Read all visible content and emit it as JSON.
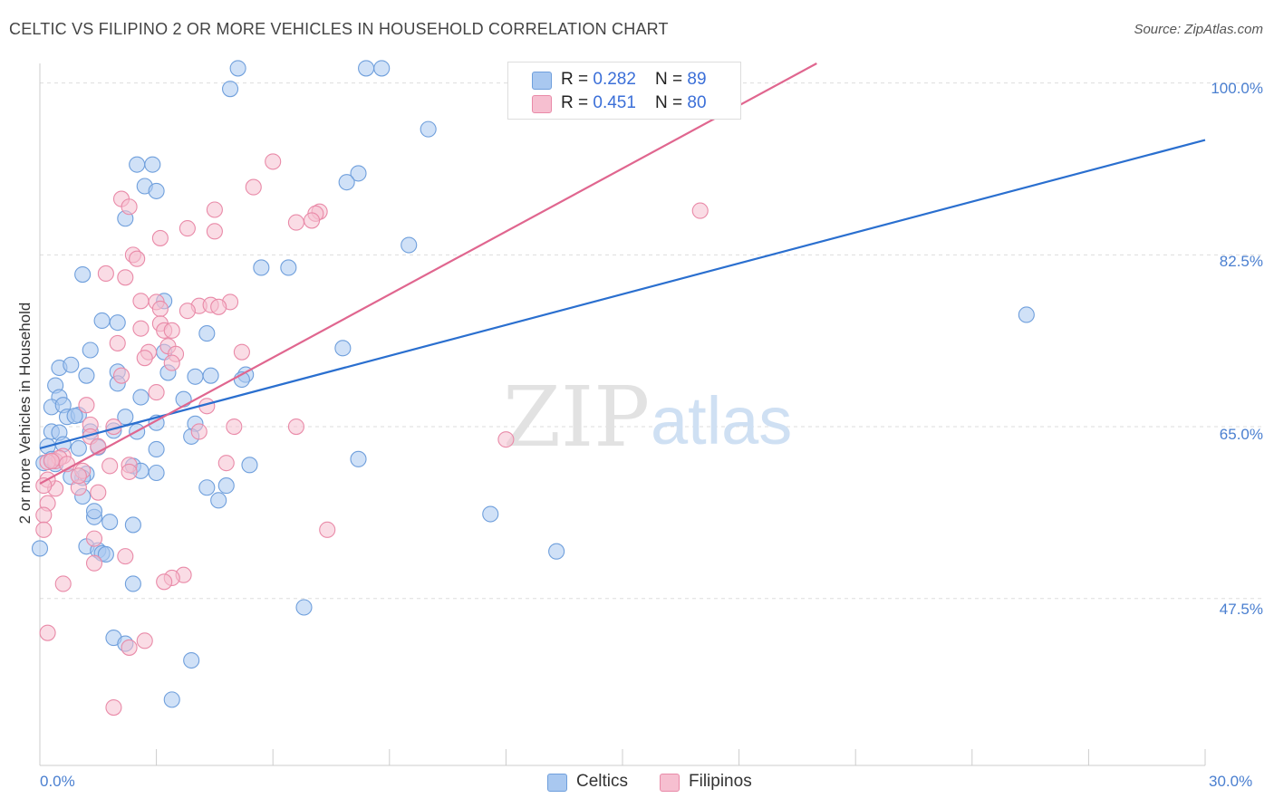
{
  "header": {
    "title": "CELTIC VS FILIPINO 2 OR MORE VEHICLES IN HOUSEHOLD CORRELATION CHART",
    "source": "Source: ZipAtlas.com"
  },
  "legend": {
    "rows": [
      {
        "r_label": "R = ",
        "r_value": "0.282",
        "n_label": "N = ",
        "n_value": "89"
      },
      {
        "r_label": "R = ",
        "r_value": "0.451",
        "n_label": "N = ",
        "n_value": "80"
      }
    ],
    "bottom": [
      "Celtics",
      "Filipinos"
    ]
  },
  "watermark": {
    "zip": "ZIP",
    "atlas": "atlas"
  },
  "colors": {
    "celtics_fill": "#a9c8f0",
    "celtics_stroke": "#6f9fdc",
    "celtics_line": "#2a6fcf",
    "filipinos_fill": "#f6bfd0",
    "filipinos_stroke": "#e98aa8",
    "filipinos_line": "#e0668f",
    "tick_text": "#4a7fd0",
    "grid": "#dddddd"
  },
  "chart_data": {
    "type": "scatter",
    "title": "CELTIC VS FILIPINO 2 OR MORE VEHICLES IN HOUSEHOLD CORRELATION CHART",
    "xlabel": "",
    "ylabel": "2 or more Vehicles in Household",
    "xlim": [
      0,
      30
    ],
    "ylim": [
      30.5,
      102
    ],
    "x_ticks": [
      "0.0%",
      "30.0%"
    ],
    "y_ticks": [
      {
        "value": 47.5,
        "label": "47.5%"
      },
      {
        "value": 65.0,
        "label": "65.0%"
      },
      {
        "value": 82.5,
        "label": "82.5%"
      },
      {
        "value": 100.0,
        "label": "100.0%"
      }
    ],
    "series": [
      {
        "name": "Celtics",
        "r": 0.282,
        "n": 89,
        "trend": {
          "x": [
            0,
            30
          ],
          "y": [
            62.8,
            94.2
          ]
        },
        "points": [
          [
            5.1,
            101.5
          ],
          [
            8.4,
            101.5
          ],
          [
            8.8,
            101.5
          ],
          [
            4.9,
            99.4
          ],
          [
            10.0,
            95.3
          ],
          [
            2.5,
            91.7
          ],
          [
            2.9,
            91.7
          ],
          [
            8.2,
            90.8
          ],
          [
            7.9,
            89.9
          ],
          [
            2.7,
            89.5
          ],
          [
            3.0,
            89.0
          ],
          [
            2.2,
            86.2
          ],
          [
            9.5,
            83.5
          ],
          [
            5.7,
            81.2
          ],
          [
            6.4,
            81.2
          ],
          [
            1.1,
            80.5
          ],
          [
            3.2,
            77.8
          ],
          [
            1.6,
            75.8
          ],
          [
            2.0,
            75.6
          ],
          [
            4.3,
            74.5
          ],
          [
            7.8,
            73.0
          ],
          [
            1.3,
            72.8
          ],
          [
            0.5,
            71.0
          ],
          [
            0.8,
            71.3
          ],
          [
            2.0,
            70.6
          ],
          [
            3.2,
            72.6
          ],
          [
            1.2,
            70.2
          ],
          [
            3.3,
            70.5
          ],
          [
            4.0,
            70.1
          ],
          [
            4.4,
            70.2
          ],
          [
            5.3,
            70.3
          ],
          [
            5.2,
            69.8
          ],
          [
            0.4,
            69.2
          ],
          [
            2.0,
            69.4
          ],
          [
            0.5,
            68.0
          ],
          [
            2.6,
            68.0
          ],
          [
            0.3,
            67.0
          ],
          [
            0.6,
            67.2
          ],
          [
            3.7,
            67.8
          ],
          [
            0.7,
            66.0
          ],
          [
            1.0,
            66.2
          ],
          [
            0.9,
            66.1
          ],
          [
            2.2,
            66.0
          ],
          [
            3.0,
            65.4
          ],
          [
            4.0,
            65.3
          ],
          [
            3.9,
            64.0
          ],
          [
            0.3,
            64.5
          ],
          [
            0.5,
            64.4
          ],
          [
            1.3,
            64.5
          ],
          [
            2.5,
            64.5
          ],
          [
            0.2,
            63.0
          ],
          [
            0.6,
            63.2
          ],
          [
            1.0,
            62.8
          ],
          [
            1.5,
            62.9
          ],
          [
            1.9,
            64.6
          ],
          [
            3.0,
            62.7
          ],
          [
            0.1,
            61.3
          ],
          [
            0.3,
            61.7
          ],
          [
            0.4,
            61.2
          ],
          [
            2.4,
            61.0
          ],
          [
            2.6,
            60.5
          ],
          [
            3.0,
            60.3
          ],
          [
            5.4,
            61.1
          ],
          [
            8.2,
            61.7
          ],
          [
            1.2,
            60.2
          ],
          [
            1.1,
            59.8
          ],
          [
            0.8,
            59.9
          ],
          [
            4.3,
            58.8
          ],
          [
            4.8,
            59.0
          ],
          [
            1.1,
            57.9
          ],
          [
            4.6,
            57.5
          ],
          [
            1.4,
            55.8
          ],
          [
            1.4,
            56.4
          ],
          [
            1.8,
            55.3
          ],
          [
            2.4,
            55.0
          ],
          [
            11.6,
            56.1
          ],
          [
            0.0,
            52.6
          ],
          [
            1.2,
            52.8
          ],
          [
            1.5,
            52.4
          ],
          [
            1.6,
            52.1
          ],
          [
            13.3,
            52.3
          ],
          [
            2.4,
            49.0
          ],
          [
            6.8,
            46.6
          ],
          [
            1.9,
            43.5
          ],
          [
            2.2,
            42.9
          ],
          [
            3.9,
            41.2
          ],
          [
            3.4,
            37.2
          ],
          [
            25.4,
            76.4
          ],
          [
            1.7,
            52.0
          ]
        ]
      },
      {
        "name": "Filipinos",
        "r": 0.451,
        "n": 80,
        "trend": {
          "x": [
            0,
            20
          ],
          "y": [
            59.2,
            102.0
          ]
        },
        "points": [
          [
            6.0,
            92.0
          ],
          [
            5.5,
            89.4
          ],
          [
            7.2,
            86.9
          ],
          [
            2.1,
            88.2
          ],
          [
            2.3,
            87.4
          ],
          [
            4.5,
            87.1
          ],
          [
            7.1,
            86.7
          ],
          [
            7.0,
            86.0
          ],
          [
            6.6,
            85.8
          ],
          [
            17.0,
            87.0
          ],
          [
            3.8,
            85.2
          ],
          [
            4.5,
            84.9
          ],
          [
            3.1,
            84.2
          ],
          [
            2.4,
            82.5
          ],
          [
            2.5,
            82.1
          ],
          [
            1.7,
            80.6
          ],
          [
            2.2,
            80.2
          ],
          [
            3.0,
            77.7
          ],
          [
            4.9,
            77.7
          ],
          [
            2.6,
            77.8
          ],
          [
            3.1,
            77.0
          ],
          [
            4.1,
            77.3
          ],
          [
            4.4,
            77.4
          ],
          [
            3.8,
            76.8
          ],
          [
            4.6,
            77.2
          ],
          [
            2.6,
            75.0
          ],
          [
            3.1,
            75.5
          ],
          [
            3.2,
            74.8
          ],
          [
            3.4,
            74.8
          ],
          [
            2.0,
            73.5
          ],
          [
            3.3,
            73.2
          ],
          [
            2.8,
            72.6
          ],
          [
            3.5,
            72.4
          ],
          [
            5.2,
            72.6
          ],
          [
            2.7,
            72.0
          ],
          [
            3.4,
            71.5
          ],
          [
            2.1,
            70.2
          ],
          [
            3.0,
            68.5
          ],
          [
            4.3,
            67.1
          ],
          [
            1.2,
            67.2
          ],
          [
            1.3,
            65.2
          ],
          [
            6.6,
            65.0
          ],
          [
            1.9,
            65.0
          ],
          [
            5.0,
            65.0
          ],
          [
            4.1,
            64.5
          ],
          [
            1.3,
            64.0
          ],
          [
            12.0,
            63.7
          ],
          [
            1.5,
            63.0
          ],
          [
            0.6,
            62.0
          ],
          [
            0.4,
            61.5
          ],
          [
            0.5,
            61.8
          ],
          [
            0.2,
            61.4
          ],
          [
            0.3,
            61.5
          ],
          [
            2.3,
            61.1
          ],
          [
            1.8,
            61.0
          ],
          [
            0.7,
            61.2
          ],
          [
            1.1,
            60.5
          ],
          [
            4.8,
            61.3
          ],
          [
            2.3,
            60.4
          ],
          [
            1.0,
            58.8
          ],
          [
            0.4,
            58.7
          ],
          [
            1.5,
            58.3
          ],
          [
            0.2,
            59.6
          ],
          [
            0.2,
            57.2
          ],
          [
            0.1,
            56.0
          ],
          [
            0.1,
            54.5
          ],
          [
            7.4,
            54.5
          ],
          [
            0.1,
            59.0
          ],
          [
            1.4,
            53.6
          ],
          [
            2.2,
            51.8
          ],
          [
            1.4,
            51.1
          ],
          [
            0.6,
            49.0
          ],
          [
            3.7,
            49.9
          ],
          [
            3.4,
            49.6
          ],
          [
            3.2,
            49.2
          ],
          [
            0.2,
            44.0
          ],
          [
            2.7,
            43.2
          ],
          [
            2.3,
            42.5
          ],
          [
            1.9,
            36.4
          ],
          [
            1.0,
            60.0
          ]
        ]
      }
    ]
  }
}
